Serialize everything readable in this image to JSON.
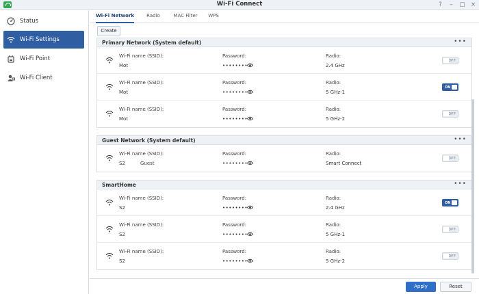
{
  "window": {
    "title": "Wi-Fi Connect",
    "controls": [
      "?",
      "–",
      "□",
      "×"
    ]
  },
  "sidebar": {
    "items": [
      {
        "label": "Status",
        "icon": "status-icon"
      },
      {
        "label": "Wi-Fi Settings",
        "icon": "wifi-icon",
        "active": true
      },
      {
        "label": "Wi-Fi Point",
        "icon": "router-icon"
      },
      {
        "label": "Wi-Fi Client",
        "icon": "client-icon"
      }
    ]
  },
  "tabs": [
    "Wi-Fi Network",
    "Radio",
    "MAC Filter",
    "WPS"
  ],
  "toolbar": {
    "create_label": "Create"
  },
  "labels": {
    "ssid": "Wi-Fi name (SSID):",
    "password": "Password:",
    "radio": "Radio:",
    "password_mask": "••••••••",
    "toggle_on": "ON",
    "toggle_off": "OFF",
    "more": "•••"
  },
  "groups": [
    {
      "title": "Primary Network (System default)",
      "rows": [
        {
          "ssid": "Mot",
          "extra": "",
          "radio": "2.4 GHz",
          "enabled": false
        },
        {
          "ssid": "Mot",
          "extra": "",
          "radio": "5 GHz-1",
          "enabled": true
        },
        {
          "ssid": "Mot",
          "extra": "",
          "radio": "5 GHz-2",
          "enabled": false
        }
      ]
    },
    {
      "title": "Guest Network (System default)",
      "rows": [
        {
          "ssid": "S2",
          "extra": "Guest",
          "radio": "Smart Connect",
          "enabled": false
        }
      ]
    },
    {
      "title": "SmartHome",
      "rows": [
        {
          "ssid": "S2",
          "extra": "",
          "radio": "2.4 GHz",
          "enabled": true
        },
        {
          "ssid": "S2",
          "extra": "",
          "radio": "5 GHz-1",
          "enabled": false
        },
        {
          "ssid": "S2",
          "extra": "",
          "radio": "5 GHz-2",
          "enabled": false
        }
      ]
    }
  ],
  "footer": {
    "apply_label": "Apply",
    "reset_label": "Reset"
  },
  "colors": {
    "accent": "#2f5ea3",
    "apply": "#2f6fc9",
    "brand": "#35a853"
  }
}
